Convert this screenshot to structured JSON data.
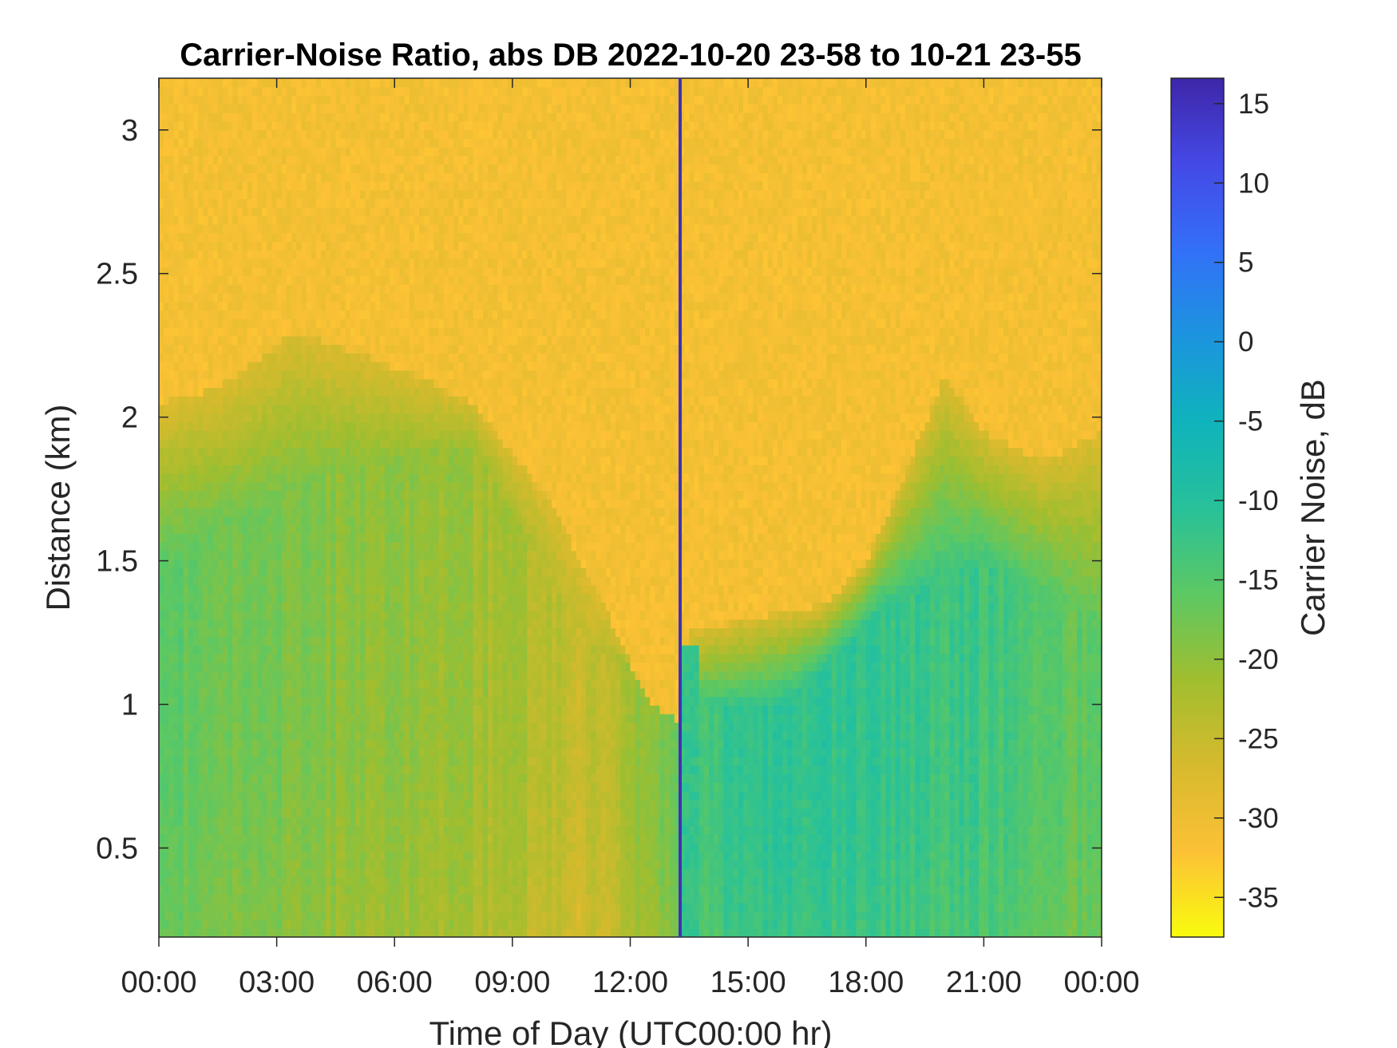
{
  "chart_data": {
    "type": "heatmap",
    "title": "Carrier-Noise Ratio, abs DB 2022-10-20 23-58 to 10-21 23-55",
    "xlabel": "Time of Day (UTC00:00 hr)",
    "ylabel": "Distance (km)",
    "x_range_hours": [
      0,
      24
    ],
    "x_ticks": [
      0,
      3,
      6,
      9,
      12,
      15,
      18,
      21,
      24
    ],
    "x_tick_labels": [
      "00:00",
      "03:00",
      "06:00",
      "09:00",
      "12:00",
      "15:00",
      "18:00",
      "21:00",
      "00:00"
    ],
    "y_range_km": [
      0.19,
      3.18
    ],
    "y_ticks": [
      0.5,
      1,
      1.5,
      2,
      2.5,
      3
    ],
    "y_tick_labels": [
      "0.5",
      "1",
      "1.5",
      "2",
      "2.5",
      "3"
    ],
    "grid": false,
    "colorbar": {
      "label": "Carrier Noise, dB",
      "range": [
        -37.5,
        16.6
      ],
      "ticks": [
        15,
        10,
        5,
        0,
        -5,
        -10,
        -15,
        -20,
        -25,
        -30,
        -35
      ],
      "tick_labels": [
        "15",
        "10",
        "5",
        "0",
        "-5",
        "-10",
        "-15",
        "-20",
        "-25",
        "-30",
        "-35"
      ],
      "colormap": "parula reversed",
      "colors": [
        "#f9fb0e",
        "#fcc136",
        "#d7ba2d",
        "#a0be2f",
        "#5cc863",
        "#27c19a",
        "#0fb3bc",
        "#1c94de",
        "#3370f8",
        "#4449e6",
        "#3e26a8"
      ]
    },
    "boundary_layer_top_km": {
      "description_values": [
        {
          "time_h": 0.0,
          "top_km": 2.05
        },
        {
          "time_h": 1.5,
          "top_km": 2.1
        },
        {
          "time_h": 3.5,
          "top_km": 2.3
        },
        {
          "time_h": 6.5,
          "top_km": 2.15
        },
        {
          "time_h": 8.0,
          "top_km": 2.05
        },
        {
          "time_h": 10.0,
          "top_km": 1.7
        },
        {
          "time_h": 11.5,
          "top_km": 1.3
        },
        {
          "time_h": 12.5,
          "top_km": 1.0
        },
        {
          "time_h": 13.2,
          "top_km": 0.95
        },
        {
          "time_h": 13.5,
          "top_km": 1.25
        },
        {
          "time_h": 15.0,
          "top_km": 1.3
        },
        {
          "time_h": 17.0,
          "top_km": 1.35
        },
        {
          "time_h": 18.0,
          "top_km": 1.5
        },
        {
          "time_h": 19.0,
          "top_km": 1.8
        },
        {
          "time_h": 20.0,
          "top_km": 2.15
        },
        {
          "time_h": 21.0,
          "top_km": 1.95
        },
        {
          "time_h": 22.5,
          "top_km": 1.85
        },
        {
          "time_h": 24.0,
          "top_km": 1.95
        }
      ]
    },
    "mixed_layer_core": [
      {
        "time_h": 0.0,
        "top_km": 1.5,
        "cnr_db": -16
      },
      {
        "time_h": 4.0,
        "top_km": 1.8,
        "cnr_db": -19
      },
      {
        "time_h": 8.0,
        "top_km": 1.9,
        "cnr_db": -21
      },
      {
        "time_h": 11.0,
        "top_km": 1.2,
        "cnr_db": -25
      },
      {
        "time_h": 14.0,
        "top_km": 1.0,
        "cnr_db": -13
      },
      {
        "time_h": 16.0,
        "top_km": 1.0,
        "cnr_db": -11
      },
      {
        "time_h": 18.5,
        "top_km": 1.35,
        "cnr_db": -12
      },
      {
        "time_h": 21.0,
        "top_km": 1.5,
        "cnr_db": -13
      },
      {
        "time_h": 24.0,
        "top_km": 1.3,
        "cnr_db": -17
      }
    ],
    "background_cnr_db": -30,
    "data_gap_line": {
      "time_h": 13.27,
      "cnr_db": 15
    }
  }
}
